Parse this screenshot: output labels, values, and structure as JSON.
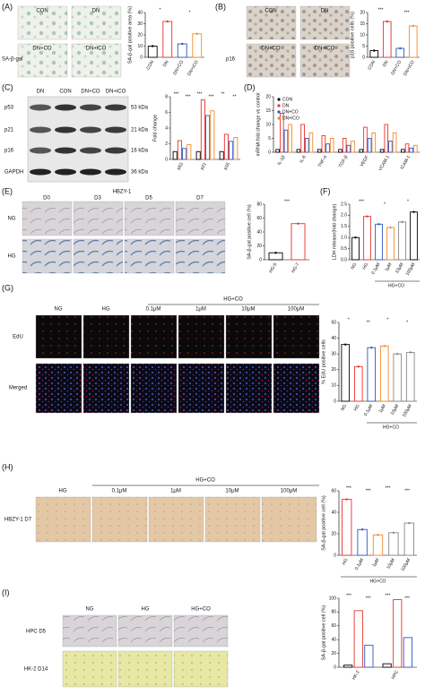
{
  "panels": [
    {
      "letter": "(A)",
      "labels": [
        "CON",
        "DN",
        "DN+CO",
        "DN+iCO",
        "SA-β-gal"
      ]
    },
    {
      "letter": "(B)",
      "labels": [
        "CON",
        "DN",
        "DN+CO",
        "DN+iCO",
        "p16"
      ]
    },
    {
      "letter": "(C)",
      "labels": [
        "DN",
        "CON",
        "DN+CO",
        "DN+iCO",
        "p53",
        "p21",
        "p16",
        "GAPDH",
        "53 kDa",
        "21 kDa",
        "16 kDa",
        "36 kDa"
      ]
    },
    {
      "letter": "(D)"
    },
    {
      "letter": "(E)",
      "labels": [
        "HBZY-1",
        "D0",
        "D3",
        "D5",
        "D7",
        "NG",
        "HG"
      ]
    },
    {
      "letter": "(F)"
    },
    {
      "letter": "(G)",
      "labels": [
        "NG",
        "HG",
        "HG+CO",
        "0.1μM",
        "1μM",
        "10μM",
        "100μM",
        "EdU",
        "Merged"
      ]
    },
    {
      "letter": "(H)",
      "labels": [
        "HG",
        "HG+CO",
        "0.1μM",
        "1μM",
        "10μM",
        "100μM",
        "HBZY-1 D7"
      ]
    },
    {
      "letter": "(I)",
      "labels": [
        "NG",
        "HG",
        "HG+CO",
        "HPC D5",
        "HK-2 D14"
      ]
    }
  ],
  "chart_data": [
    {
      "type": "bar",
      "ylabel": "SA-β-gal positive area (%)",
      "categories": [
        "CON",
        "DN",
        "DN+CO",
        "DN+iCO"
      ],
      "values": [
        10,
        32,
        12,
        21
      ],
      "colors": [
        "#000000",
        "#e8322b",
        "#2f55c4",
        "#f08a2c"
      ],
      "ylim": [
        0,
        40
      ],
      "yticks": [
        0,
        10,
        20,
        30,
        40
      ],
      "annotations": [
        "*",
        "*"
      ]
    },
    {
      "type": "bar",
      "ylabel": "p16 positive cells (%)",
      "categories": [
        "CON",
        "DN",
        "DN+CO",
        "DN+iCO"
      ],
      "values": [
        3,
        16,
        4,
        14
      ],
      "colors": [
        "#000000",
        "#e8322b",
        "#2f55c4",
        "#f08a2c"
      ],
      "ylim": [
        0,
        20
      ],
      "yticks": [
        0,
        5,
        10,
        15,
        20
      ],
      "annotations": [
        "***",
        "***"
      ]
    },
    {
      "type": "grouped",
      "ylabel": "Fold change",
      "categories": [
        "p53",
        "p21",
        "p16"
      ],
      "series": [
        {
          "color": "#000000",
          "values": [
            1,
            1,
            1
          ]
        },
        {
          "color": "#e8322b",
          "values": [
            2.4,
            7.6,
            3.2
          ]
        },
        {
          "color": "#2f55c4",
          "values": [
            1.4,
            5.6,
            2.3
          ]
        },
        {
          "color": "#f08a2c",
          "values": [
            1.9,
            6.2,
            2.8
          ]
        }
      ],
      "ylim": [
        0,
        8
      ],
      "yticks": [
        0,
        2,
        4,
        6,
        8
      ],
      "annotations": [
        "***",
        "***",
        "***",
        "***",
        "**",
        "**"
      ]
    },
    {
      "type": "grouped",
      "ylabel": "mRNA fold change vs control",
      "categories": [
        "IL-1β",
        "IL-6",
        "TNF-α",
        "TGF-β",
        "VEGF",
        "VCAM-1",
        "ICAM-1"
      ],
      "series": [
        {
          "name": "CON",
          "color": "#000000",
          "values": [
            1,
            1,
            1,
            1,
            1,
            1,
            1
          ]
        },
        {
          "name": "DN",
          "color": "#e8322b",
          "values": [
            14,
            10,
            6,
            5,
            9,
            10,
            3
          ]
        },
        {
          "name": "DN+CO",
          "color": "#2f55c4",
          "values": [
            8,
            5,
            3,
            2.5,
            5,
            4,
            1.5
          ]
        },
        {
          "name": "DN+iCO",
          "color": "#f08a2c",
          "values": [
            10,
            7,
            5,
            4,
            7,
            7,
            2.5
          ]
        }
      ],
      "ylim": [
        0,
        20
      ],
      "yticks": [
        0,
        5,
        10,
        15,
        20
      ],
      "legend": "top-left"
    },
    {
      "type": "bar",
      "ylabel": "SA-β-gal positive cell (%)",
      "categories": [
        "HG-5",
        "HG-7"
      ],
      "values": [
        10,
        52
      ],
      "colors": [
        "#000000",
        "#e8322b"
      ],
      "ylim": [
        0,
        80
      ],
      "yticks": [
        0,
        20,
        40,
        60,
        80
      ],
      "annotations": [
        "***"
      ]
    },
    {
      "type": "bar",
      "ylabel": "LDH release(fold change)",
      "categories": [
        "NG",
        "HG",
        "0.1μM",
        "1μM",
        "10μM",
        "100μM"
      ],
      "values": [
        1,
        1.95,
        1.6,
        1.45,
        1.7,
        2.15
      ],
      "colors": [
        "#000000",
        "#e8322b",
        "#2f55c4",
        "#f08a2c",
        "#888888",
        "#000000"
      ],
      "ylim": [
        0,
        2.5
      ],
      "yticks": [
        {
          "value": 0,
          "label": "0.0"
        },
        0.5,
        {
          "value": 1,
          "label": "1.0"
        },
        1.5,
        {
          "value": 2,
          "label": "2.0"
        },
        2.5
      ],
      "group_label": "HG+CO",
      "annotations": [
        "***",
        "*",
        "*"
      ]
    },
    {
      "type": "bar",
      "ylabel": "% EdU positive cells",
      "categories": [
        "NG",
        "HG",
        "0.1μM",
        "1μM",
        "10μM",
        "100μM"
      ],
      "values": [
        36,
        22,
        34,
        35,
        30,
        31
      ],
      "colors": [
        "#000000",
        "#e8322b",
        "#2f55c4",
        "#f08a2c",
        "#888888",
        "#888888"
      ],
      "ylim": [
        0,
        50
      ],
      "yticks": [
        0,
        10,
        20,
        30,
        40,
        50
      ],
      "group_label": "HG+CO",
      "annotations": [
        "*",
        "**",
        "*",
        "*"
      ]
    },
    {
      "type": "bar",
      "ylabel": "SA-β-gal positive cell (%)",
      "categories": [
        "HG",
        "0.1μM",
        "1μM",
        "10μM",
        "100μM"
      ],
      "values": [
        52,
        24,
        19,
        21,
        30
      ],
      "colors": [
        "#e8322b",
        "#2f55c4",
        "#f08a2c",
        "#888888",
        "#888888"
      ],
      "ylim": [
        0,
        60
      ],
      "yticks": [
        0,
        20,
        40,
        60
      ],
      "group_label": "HG+CO",
      "annotations": [
        "***",
        "***",
        "***",
        "***"
      ]
    },
    {
      "type": "grouped",
      "ylabel": "SA-β-gal positive cell (%)",
      "categories": [
        "HK-2",
        "HPC"
      ],
      "series": [
        {
          "color": "#000000",
          "values": [
            3,
            5
          ]
        },
        {
          "color": "#e8322b",
          "values": [
            82,
            98
          ]
        },
        {
          "color": "#2f55c4",
          "values": [
            32,
            43
          ]
        }
      ],
      "ylim": [
        0,
        100
      ],
      "yticks": [
        0,
        20,
        40,
        60,
        80,
        100
      ],
      "annotations": [
        "***",
        "***",
        "***",
        "***"
      ]
    }
  ]
}
